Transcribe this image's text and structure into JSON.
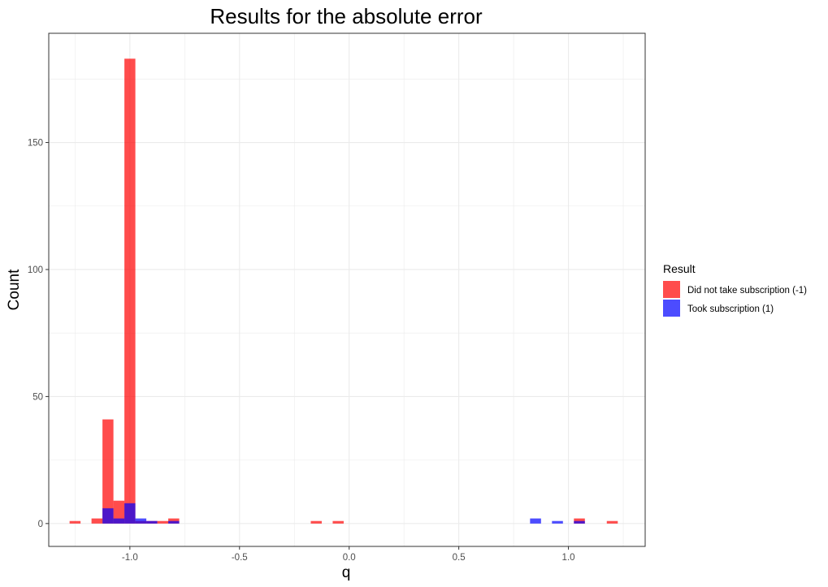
{
  "chart_data": {
    "type": "bar",
    "title": "Results for the absolute error",
    "xlabel": "q",
    "ylabel": "Count",
    "xlim": [
      -1.37,
      1.35
    ],
    "ylim": [
      -9,
      193
    ],
    "x_ticks": [
      -1.0,
      -0.5,
      0.0,
      0.5,
      1.0
    ],
    "x_tick_labels": [
      "-1.0",
      "-0.5",
      "0.0",
      "0.5",
      "1.0"
    ],
    "y_ticks": [
      0,
      50,
      100,
      150
    ],
    "y_tick_labels": [
      "0",
      "50",
      "100",
      "150"
    ],
    "bin_width": 0.05,
    "grid": true,
    "legend_placement": "right",
    "legend": {
      "title": "Result",
      "entries": [
        {
          "label": "Did not take subscription (-1)",
          "color": "#ff0000"
        },
        {
          "label": "Took subscription (1)",
          "color": "#0000ff"
        }
      ]
    },
    "series": [
      {
        "name": "Did not take subscription (-1)",
        "color": "#ff0000",
        "opacity": 0.7,
        "bins": [
          {
            "x": -1.25,
            "count": 1
          },
          {
            "x": -1.15,
            "count": 2
          },
          {
            "x": -1.1,
            "count": 41
          },
          {
            "x": -1.05,
            "count": 9
          },
          {
            "x": -1.0,
            "count": 183
          },
          {
            "x": -0.95,
            "count": 1
          },
          {
            "x": -0.9,
            "count": 1
          },
          {
            "x": -0.85,
            "count": 1
          },
          {
            "x": -0.8,
            "count": 2
          },
          {
            "x": -0.15,
            "count": 1
          },
          {
            "x": -0.05,
            "count": 1
          },
          {
            "x": 1.05,
            "count": 2
          },
          {
            "x": 1.2,
            "count": 1
          }
        ]
      },
      {
        "name": "Took subscription (1)",
        "color": "#0000ff",
        "opacity": 0.7,
        "bins": [
          {
            "x": -1.1,
            "count": 6
          },
          {
            "x": -1.05,
            "count": 2
          },
          {
            "x": -1.0,
            "count": 8
          },
          {
            "x": -0.95,
            "count": 2
          },
          {
            "x": -0.9,
            "count": 1
          },
          {
            "x": -0.8,
            "count": 1
          },
          {
            "x": 0.85,
            "count": 2
          },
          {
            "x": 0.95,
            "count": 1
          },
          {
            "x": 1.05,
            "count": 1
          }
        ]
      }
    ]
  }
}
